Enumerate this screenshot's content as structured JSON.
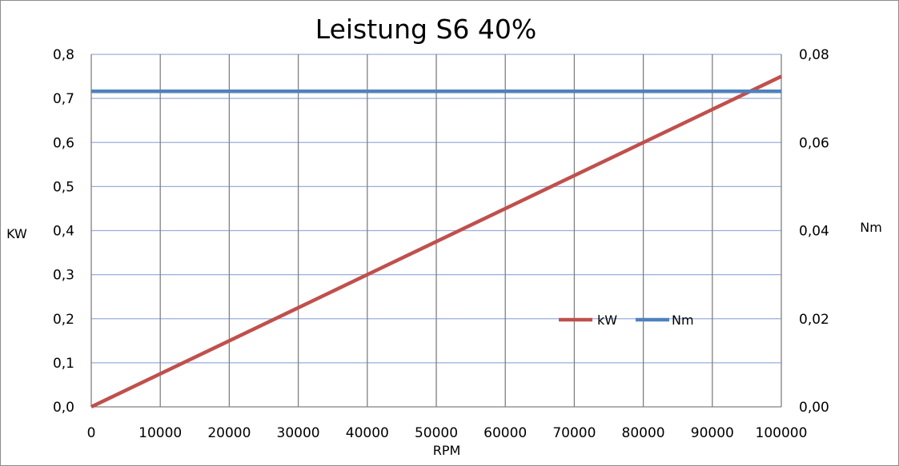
{
  "chart_data": {
    "type": "line",
    "title": "Leistung S6 40%",
    "xlabel": "RPM",
    "ylabel": "KW",
    "y2label": "Nm",
    "xlim": [
      0,
      100000
    ],
    "ylim": [
      0,
      0.8
    ],
    "y2lim": [
      0,
      0.08
    ],
    "x_ticks": [
      "0",
      "10000",
      "20000",
      "30000",
      "40000",
      "50000",
      "60000",
      "70000",
      "80000",
      "90000",
      "100000"
    ],
    "y_ticks": [
      "0,0",
      "0,1",
      "0,2",
      "0,3",
      "0,4",
      "0,5",
      "0,6",
      "0,7",
      "0,8"
    ],
    "y2_ticks": [
      "0,00",
      "0,02",
      "0,04",
      "0,06",
      "0,08"
    ],
    "x_tick_values": [
      0,
      10000,
      20000,
      30000,
      40000,
      50000,
      60000,
      70000,
      80000,
      90000,
      100000
    ],
    "y_tick_values": [
      0,
      0.1,
      0.2,
      0.3,
      0.4,
      0.5,
      0.6,
      0.7,
      0.8
    ],
    "y2_tick_values": [
      0,
      0.02,
      0.04,
      0.06,
      0.08
    ],
    "grid": true,
    "legend_position": "right",
    "series": [
      {
        "name": "kW",
        "axis": "left",
        "color": "#c0504d",
        "x": [
          0,
          100000
        ],
        "y": [
          0,
          0.75
        ]
      },
      {
        "name": "Nm",
        "axis": "right",
        "color": "#4f81bd",
        "x": [
          0,
          100000
        ],
        "y": [
          0.0716,
          0.0716
        ]
      }
    ]
  }
}
